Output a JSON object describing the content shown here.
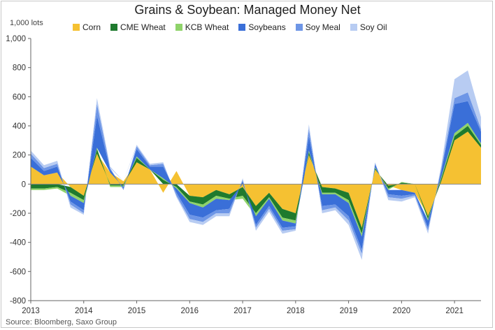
{
  "chart_data": {
    "type": "area",
    "stacked": true,
    "title": "Grains & Soybean: Managed Money Net",
    "unit_label": "1,000 lots",
    "source": "Source: Bloomberg, Saxo Group",
    "legend_position": "top",
    "grid": false,
    "ylim": [
      -800,
      1000
    ],
    "yticks": [
      -800,
      -600,
      -400,
      -200,
      0,
      200,
      400,
      600,
      800,
      1000
    ],
    "ytick_labels": [
      "-800",
      "-600",
      "-400",
      "-200",
      "0",
      "200",
      "400",
      "600",
      "800",
      "1,000"
    ],
    "xlim": [
      2013.0,
      2021.5
    ],
    "xticks": [
      2013,
      2014,
      2015,
      2016,
      2017,
      2018,
      2019,
      2020,
      2021
    ],
    "xtick_labels": [
      "2013",
      "2014",
      "2015",
      "2016",
      "2017",
      "2018",
      "2019",
      "2020",
      "2021"
    ],
    "x": [
      2013.0,
      2013.25,
      2013.5,
      2013.75,
      2014.0,
      2014.25,
      2014.5,
      2014.75,
      2015.0,
      2015.25,
      2015.5,
      2015.75,
      2016.0,
      2016.25,
      2016.5,
      2016.75,
      2017.0,
      2017.25,
      2017.5,
      2017.75,
      2018.0,
      2018.25,
      2018.5,
      2018.75,
      2019.0,
      2019.25,
      2019.5,
      2019.75,
      2020.0,
      2020.25,
      2020.5,
      2020.75,
      2021.0,
      2021.25,
      2021.5
    ],
    "series": [
      {
        "name": "Corn",
        "color": "#f5c132",
        "values": [
          120,
          60,
          80,
          -20,
          -80,
          210,
          80,
          20,
          150,
          100,
          -60,
          90,
          -80,
          -90,
          -40,
          -70,
          -20,
          -150,
          -60,
          -170,
          -200,
          200,
          -20,
          -30,
          -60,
          -300,
          100,
          -10,
          -40,
          -60,
          -220,
          20,
          300,
          360,
          250
        ]
      },
      {
        "name": "CME Wheat",
        "color": "#1f7a2e",
        "values": [
          -30,
          -30,
          -20,
          -40,
          -30,
          30,
          -10,
          -10,
          30,
          0,
          30,
          -20,
          -40,
          -50,
          -40,
          -30,
          -60,
          -50,
          -30,
          -60,
          -50,
          20,
          -40,
          -30,
          -50,
          -40,
          10,
          -20,
          10,
          0,
          -20,
          20,
          30,
          40,
          20
        ]
      },
      {
        "name": "KCB Wheat",
        "color": "#8fd36a",
        "values": [
          -10,
          -10,
          -10,
          -20,
          -20,
          10,
          -10,
          -10,
          10,
          0,
          10,
          -10,
          -10,
          -20,
          -20,
          -10,
          -20,
          -20,
          -10,
          -20,
          -20,
          10,
          -10,
          -10,
          -20,
          -20,
          5,
          -10,
          5,
          0,
          -10,
          10,
          20,
          20,
          10
        ]
      },
      {
        "name": "Soybeans",
        "color": "#3a6fd8",
        "values": [
          60,
          30,
          40,
          -40,
          -50,
          220,
          20,
          -10,
          50,
          20,
          80,
          -30,
          -80,
          -70,
          -80,
          -60,
          20,
          -60,
          -50,
          -50,
          -20,
          100,
          -80,
          -70,
          -90,
          -90,
          20,
          -30,
          -40,
          -10,
          -50,
          40,
          200,
          150,
          80
        ]
      },
      {
        "name": "Soy Meal",
        "color": "#6e96e6",
        "values": [
          30,
          20,
          20,
          -20,
          -20,
          80,
          10,
          -10,
          20,
          10,
          20,
          -20,
          -30,
          -30,
          -20,
          -30,
          10,
          -20,
          -20,
          -20,
          -20,
          50,
          -30,
          -20,
          -30,
          -30,
          10,
          -20,
          -20,
          -10,
          -20,
          20,
          40,
          60,
          20
        ]
      },
      {
        "name": "Soy Oil",
        "color": "#b8ccf2",
        "values": [
          20,
          20,
          20,
          -20,
          -10,
          40,
          10,
          0,
          10,
          10,
          10,
          -10,
          -20,
          -20,
          -20,
          -20,
          10,
          -20,
          -20,
          -20,
          -10,
          30,
          -20,
          -20,
          -30,
          -40,
          5,
          -20,
          -20,
          -10,
          -20,
          20,
          130,
          150,
          80
        ]
      }
    ]
  }
}
